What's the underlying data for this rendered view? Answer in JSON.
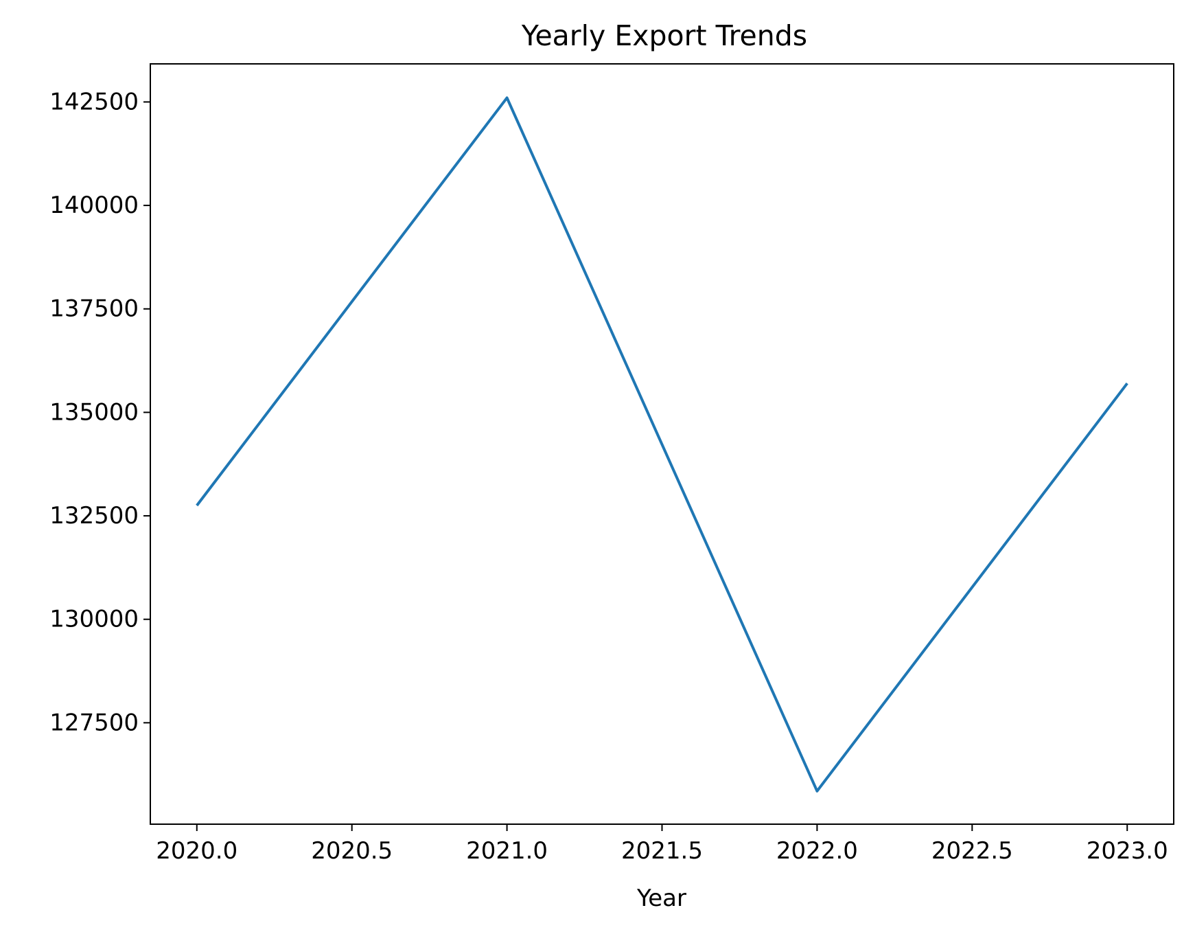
{
  "chart_data": {
    "type": "line",
    "title": "Yearly Export Trends",
    "xlabel": "Year",
    "ylabel": "",
    "x": [
      2020,
      2021,
      2022,
      2023
    ],
    "series": [
      {
        "values": [
          132750,
          142600,
          125850,
          135700
        ],
        "color": "#1f77b4"
      }
    ],
    "xlim": [
      2019.85,
      2023.15
    ],
    "ylim": [
      125050,
      143420
    ],
    "x_ticks": [
      2020.0,
      2020.5,
      2021.0,
      2021.5,
      2022.0,
      2022.5,
      2023.0
    ],
    "x_tick_labels": [
      "2020.0",
      "2020.5",
      "2021.0",
      "2021.5",
      "2022.0",
      "2022.5",
      "2023.0"
    ],
    "y_ticks": [
      127500,
      130000,
      132500,
      135000,
      137500,
      140000,
      142500
    ],
    "y_tick_labels": [
      "127500",
      "130000",
      "132500",
      "135000",
      "137500",
      "140000",
      "142500"
    ],
    "grid": false,
    "legend": "none"
  }
}
